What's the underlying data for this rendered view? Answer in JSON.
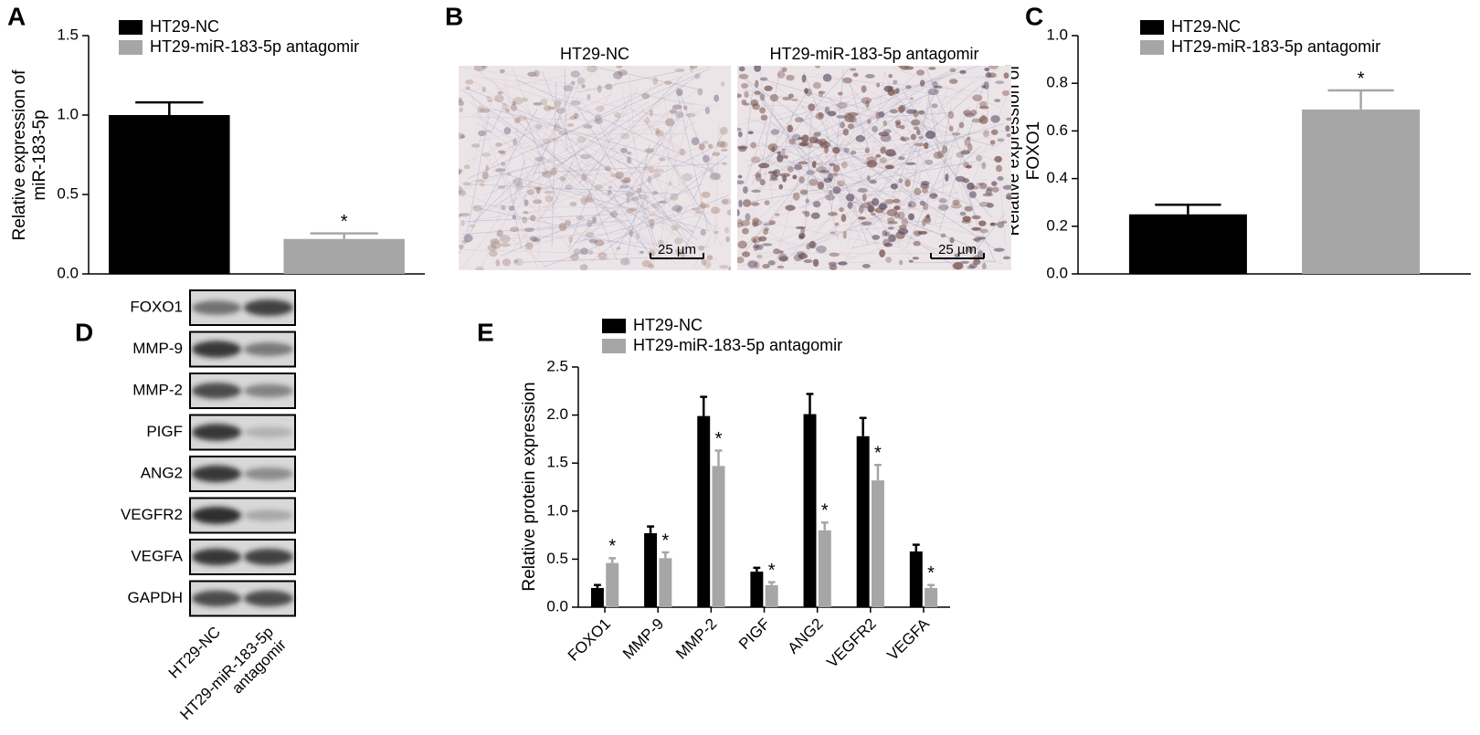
{
  "chart_data": [
    {
      "type": "bar",
      "panel_label": "A",
      "ylabel": [
        "Relative expression of",
        "miR-183-5p"
      ],
      "categories": [
        null
      ],
      "series": [
        {
          "name": "HT29-NC",
          "color": "#000000",
          "values": [
            1.0
          ],
          "errors": [
            0.08
          ]
        },
        {
          "name": "HT29-miR-183-5p antagomir",
          "color": "#a6a6a6",
          "values": [
            0.22
          ],
          "errors": [
            0.035
          ],
          "marks": [
            "*"
          ]
        }
      ],
      "ylim": [
        0,
        1.5
      ],
      "yticks": [
        {
          "value": 0,
          "label": "0.0"
        },
        0.5,
        {
          "value": 1,
          "label": "1.0"
        },
        1.5
      ]
    },
    {
      "type": "bar",
      "panel_label": "C",
      "ylabel": [
        "Relative expression of",
        "FOXO1"
      ],
      "categories": [
        null
      ],
      "series": [
        {
          "name": "HT29-NC",
          "color": "#000000",
          "values": [
            0.25
          ],
          "errors": [
            0.04
          ]
        },
        {
          "name": "HT29-miR-183-5p antagomir",
          "color": "#a6a6a6",
          "values": [
            0.69
          ],
          "errors": [
            0.08
          ],
          "marks": [
            "*"
          ]
        }
      ],
      "ylim": [
        0,
        1.0
      ],
      "yticks": [
        {
          "value": 0,
          "label": "0.0"
        },
        0.2,
        0.4,
        0.6,
        0.8,
        {
          "value": 1,
          "label": "1.0"
        }
      ]
    },
    {
      "type": "bar",
      "panel_label": "E",
      "ylabel": "Relative protein expression",
      "categories": [
        "FOXO1",
        "MMP-9",
        "MMP-2",
        "PIGF",
        "ANG2",
        "VEGFR2",
        "VEGFA"
      ],
      "series": [
        {
          "name": "HT29-NC",
          "color": "#000000",
          "values": [
            0.2,
            0.77,
            1.99,
            0.37,
            2.01,
            1.78,
            0.58
          ],
          "errors": [
            0.03,
            0.07,
            0.2,
            0.04,
            0.21,
            0.19,
            0.07
          ]
        },
        {
          "name": "HT29-miR-183-5p antagomir",
          "color": "#a6a6a6",
          "values": [
            0.46,
            0.51,
            1.47,
            0.23,
            0.8,
            1.32,
            0.2
          ],
          "errors": [
            0.05,
            0.06,
            0.16,
            0.03,
            0.08,
            0.16,
            0.03
          ],
          "marks": [
            "*",
            "*",
            "*",
            "*",
            "*",
            "*",
            "*"
          ]
        }
      ],
      "ylim": [
        0,
        2.5
      ],
      "yticks": [
        {
          "value": 0,
          "label": "0.0"
        },
        0.5,
        {
          "value": 1,
          "label": "1.0"
        },
        1.5,
        {
          "value": 2,
          "label": "2.0"
        },
        2.5
      ]
    }
  ],
  "panel_b": {
    "label": "B",
    "images": [
      {
        "title": "HT29-NC",
        "scale_bar": "25 µm"
      },
      {
        "title": "HT29-miR-183-5p antagomir",
        "scale_bar": "25 µm"
      }
    ]
  },
  "panel_d": {
    "label": "D",
    "proteins": [
      "FOXO1",
      "MMP-9",
      "MMP-2",
      "PIGF",
      "ANG2",
      "VEGFR2",
      "VEGFA",
      "GAPDH"
    ],
    "lanes": [
      [
        "HT29-NC"
      ],
      [
        "HT29-miR-183-5p",
        "antagomir"
      ]
    ]
  }
}
